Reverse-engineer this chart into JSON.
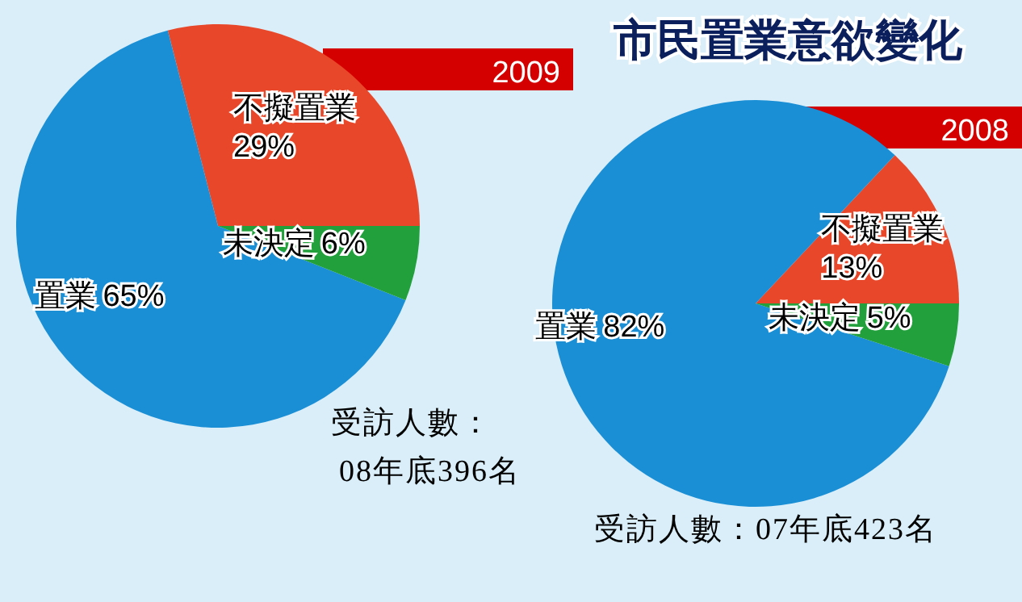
{
  "chart_data": [
    {
      "type": "pie",
      "title": "2009",
      "categories": [
        "不擬置業",
        "置業",
        "未決定"
      ],
      "values": [
        29,
        65,
        6
      ],
      "value_labels": [
        "29%",
        "65%",
        "6%"
      ],
      "colors": [
        "#e8472a",
        "#1b8fd6",
        "#22a03c"
      ],
      "annotations": [
        "受訪人數：",
        "08年底396名"
      ]
    },
    {
      "type": "pie",
      "title": "2008",
      "subtitle": "市民置業意欲變化",
      "categories": [
        "不擬置業",
        "置業",
        "未決定"
      ],
      "values": [
        13,
        82,
        5
      ],
      "value_labels": [
        "13%",
        "82%",
        "5%"
      ],
      "colors": [
        "#e8472a",
        "#1b8fd6",
        "#22a03c"
      ],
      "annotations": [
        "受訪人數：07年底423名"
      ]
    }
  ]
}
